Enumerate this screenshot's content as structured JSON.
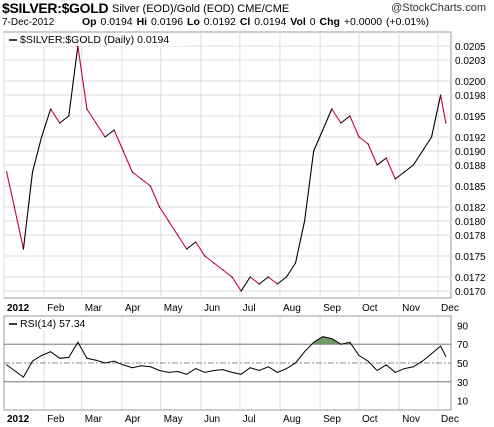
{
  "header": {
    "symbol": "$SILVER:$GOLD",
    "description": "Silver (EOD)/Gold (EOD)  CME/CME",
    "logo": "@StockCharts.com",
    "date": "7-Dec-2012",
    "ohlc": {
      "open_label": "Op",
      "open": "0.0194",
      "high_label": "Hi",
      "high": "0.0196",
      "low_label": "Lo",
      "low": "0.0192",
      "close_label": "Cl",
      "close": "0.0194",
      "volume_label": "Vol",
      "volume": "0",
      "change_label": "Chg",
      "change": "+0.0000 (+0.01%)"
    }
  },
  "legend": {
    "price": "$SILVER:$GOLD (Daily) 0.0194",
    "rsi": "RSI(14) 57.34"
  },
  "colors": {
    "price_up": "#000000",
    "price_down": "#cc0033",
    "rsi_line": "#000000",
    "overbought_fill": "#5a8a4a",
    "grid": "#dddddd"
  },
  "chart_data": [
    {
      "type": "line",
      "x_labels": [
        "2012",
        "Feb",
        "Mar",
        "Apr",
        "May",
        "Jun",
        "Jul",
        "Aug",
        "Sep",
        "Oct",
        "Nov",
        "Dec"
      ],
      "y_ticks": [
        "0.0205",
        "0.0203",
        "0.0200",
        "0.0198",
        "0.0195",
        "0.0192",
        "0.0190",
        "0.0188",
        "0.0185",
        "0.0182",
        "0.0180",
        "0.0178",
        "0.0175",
        "0.0172",
        "0.0170"
      ],
      "ylim": [
        0.0169,
        0.0207
      ],
      "series": [
        {
          "x": [
            "2012-01-03",
            "2012-01-09",
            "2012-01-16",
            "2012-01-23",
            "2012-01-30",
            "2012-02-06",
            "2012-02-13",
            "2012-02-20",
            "2012-02-27",
            "2012-03-05",
            "2012-03-12",
            "2012-03-19",
            "2012-03-26",
            "2012-04-02",
            "2012-04-09",
            "2012-04-16",
            "2012-04-23",
            "2012-04-30",
            "2012-05-07",
            "2012-05-14",
            "2012-05-21",
            "2012-05-28",
            "2012-06-04",
            "2012-06-11",
            "2012-06-18",
            "2012-06-25",
            "2012-07-02",
            "2012-07-09",
            "2012-07-16",
            "2012-07-23",
            "2012-07-30",
            "2012-08-06",
            "2012-08-13",
            "2012-08-20",
            "2012-08-27",
            "2012-09-03",
            "2012-09-10",
            "2012-09-17",
            "2012-09-24",
            "2012-10-01",
            "2012-10-08",
            "2012-10-15",
            "2012-10-22",
            "2012-10-29",
            "2012-11-05",
            "2012-11-12",
            "2012-11-19",
            "2012-11-26",
            "2012-12-03",
            "2012-12-07"
          ],
          "values": [
            0.0187,
            0.0182,
            0.0176,
            0.0187,
            0.0192,
            0.0196,
            0.0194,
            0.0195,
            0.0205,
            0.0196,
            0.0194,
            0.0192,
            0.0193,
            0.019,
            0.0187,
            0.0186,
            0.0185,
            0.0182,
            0.018,
            0.0178,
            0.0176,
            0.0177,
            0.0175,
            0.0174,
            0.0173,
            0.0172,
            0.017,
            0.0172,
            0.0171,
            0.0172,
            0.0171,
            0.0172,
            0.0174,
            0.018,
            0.019,
            0.0193,
            0.0196,
            0.0194,
            0.0195,
            0.0192,
            0.0191,
            0.0188,
            0.0189,
            0.0186,
            0.0187,
            0.0188,
            0.019,
            0.0192,
            0.0198,
            0.0194
          ]
        }
      ]
    },
    {
      "type": "line",
      "title": "RSI(14)",
      "y_ticks": [
        "90",
        "70",
        "50",
        "30",
        "10"
      ],
      "ylim": [
        0,
        100
      ],
      "reference_lines": [
        70,
        50,
        30
      ],
      "series": [
        {
          "x": [
            "2012-01-03",
            "2012-01-09",
            "2012-01-16",
            "2012-01-23",
            "2012-01-30",
            "2012-02-06",
            "2012-02-13",
            "2012-02-20",
            "2012-02-27",
            "2012-03-05",
            "2012-03-12",
            "2012-03-19",
            "2012-03-26",
            "2012-04-02",
            "2012-04-09",
            "2012-04-16",
            "2012-04-23",
            "2012-04-30",
            "2012-05-07",
            "2012-05-14",
            "2012-05-21",
            "2012-05-28",
            "2012-06-04",
            "2012-06-11",
            "2012-06-18",
            "2012-06-25",
            "2012-07-02",
            "2012-07-09",
            "2012-07-16",
            "2012-07-23",
            "2012-07-30",
            "2012-08-06",
            "2012-08-13",
            "2012-08-20",
            "2012-08-27",
            "2012-09-03",
            "2012-09-10",
            "2012-09-17",
            "2012-09-24",
            "2012-10-01",
            "2012-10-08",
            "2012-10-15",
            "2012-10-22",
            "2012-10-29",
            "2012-11-05",
            "2012-11-12",
            "2012-11-19",
            "2012-11-26",
            "2012-12-03",
            "2012-12-07"
          ],
          "values": [
            48,
            42,
            35,
            52,
            58,
            62,
            55,
            56,
            72,
            55,
            53,
            50,
            52,
            48,
            45,
            47,
            46,
            42,
            40,
            41,
            38,
            44,
            40,
            42,
            43,
            40,
            38,
            45,
            42,
            46,
            40,
            44,
            50,
            62,
            72,
            78,
            76,
            70,
            72,
            58,
            52,
            42,
            48,
            40,
            44,
            46,
            52,
            60,
            68,
            57
          ]
        }
      ]
    }
  ]
}
